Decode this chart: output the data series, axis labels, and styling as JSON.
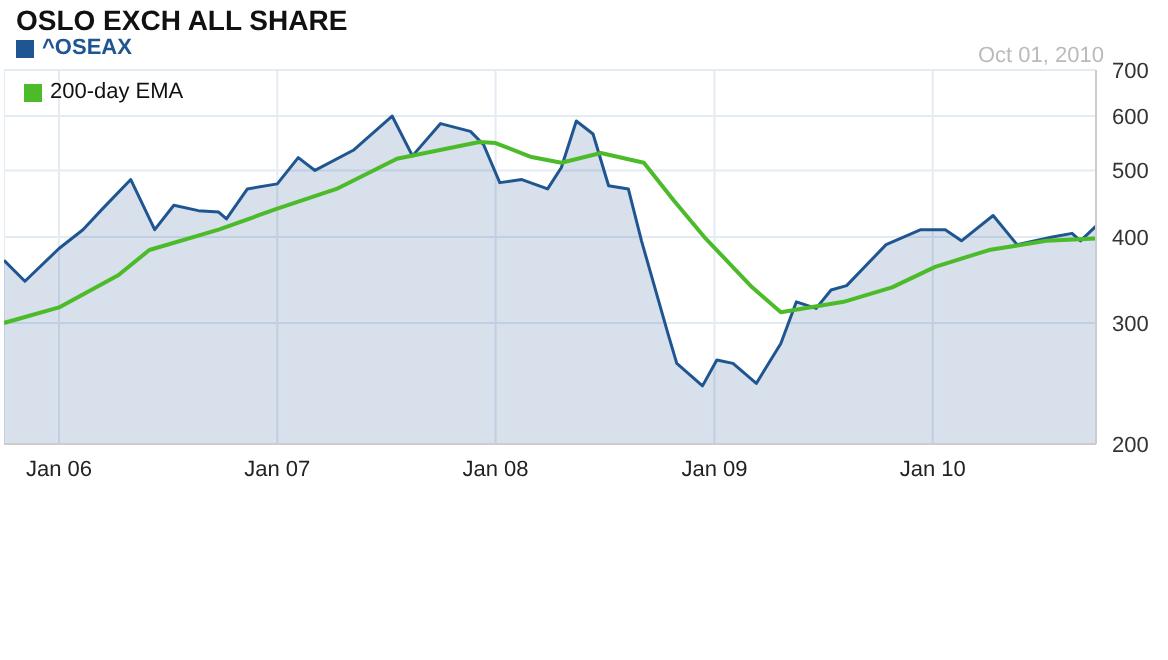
{
  "chart_data": {
    "type": "area",
    "title": "OSLO EXCH ALL SHARE",
    "subtitle": "Oct 01, 2010",
    "series": [
      {
        "name": "^OSEAX",
        "color": "#1f5591",
        "x": [
          "2005-10-01",
          "2005-11-05",
          "2006-01-01",
          "2006-02-10",
          "2006-03-15",
          "2006-05-01",
          "2006-06-10",
          "2006-07-12",
          "2006-08-22",
          "2006-09-25",
          "2006-10-08",
          "2006-11-12",
          "2007-01-01",
          "2007-02-05",
          "2007-03-05",
          "2007-05-08",
          "2007-07-12",
          "2007-08-15",
          "2007-10-01",
          "2007-11-20",
          "2007-12-12",
          "2008-01-08",
          "2008-02-14",
          "2008-03-28",
          "2008-04-20",
          "2008-05-15",
          "2008-06-12",
          "2008-07-08",
          "2008-08-10",
          "2008-09-01",
          "2008-10-15",
          "2008-10-30",
          "2008-12-12",
          "2009-01-05",
          "2009-02-01",
          "2009-03-12",
          "2009-04-22",
          "2009-05-18",
          "2009-06-20",
          "2009-07-15",
          "2009-08-10",
          "2009-10-15",
          "2009-12-12",
          "2010-01-22",
          "2010-02-18",
          "2010-04-12",
          "2010-05-22",
          "2010-07-20",
          "2010-08-22",
          "2010-09-05",
          "2010-10-01"
        ],
        "values": [
          370,
          345,
          385,
          410,
          440,
          485,
          410,
          445,
          437,
          435,
          425,
          470,
          478,
          522,
          500,
          535,
          600,
          525,
          585,
          570,
          545,
          480,
          485,
          470,
          505,
          590,
          565,
          475,
          470,
          395,
          290,
          262,
          243,
          265,
          262,
          245,
          280,
          322,
          315,
          335,
          340,
          390,
          410,
          410,
          395,
          430,
          390,
          400,
          405,
          395,
          415
        ]
      },
      {
        "name": "200-day EMA",
        "type": "line",
        "color": "#4cbb2a",
        "x": [
          "2005-10-01",
          "2006-01-01",
          "2006-04-10",
          "2006-06-01",
          "2006-09-25",
          "2007-01-01",
          "2007-04-10",
          "2007-07-20",
          "2007-12-05",
          "2008-01-01",
          "2008-03-01",
          "2008-04-20",
          "2008-06-25",
          "2008-09-05",
          "2008-10-25",
          "2008-12-15",
          "2009-03-05",
          "2009-04-22",
          "2009-08-05",
          "2009-10-25",
          "2010-01-05",
          "2010-04-05",
          "2010-07-10",
          "2010-10-01"
        ],
        "values": [
          300,
          316,
          352,
          383,
          410,
          440,
          470,
          520,
          550,
          548,
          523,
          513,
          530,
          513,
          452,
          400,
          338,
          311,
          322,
          338,
          362,
          383,
          395,
          398
        ]
      }
    ],
    "xlim": [
      "2005-10-01",
      "2010-10-01"
    ],
    "xticks": [
      {
        "value": "2006-01-01",
        "label": "Jan 06"
      },
      {
        "value": "2007-01-01",
        "label": "Jan 07"
      },
      {
        "value": "2008-01-01",
        "label": "Jan 08"
      },
      {
        "value": "2009-01-01",
        "label": "Jan 09"
      },
      {
        "value": "2010-01-01",
        "label": "Jan 10"
      }
    ],
    "ylim": [
      200,
      700
    ],
    "yticks": [
      200,
      300,
      400,
      500,
      600,
      700
    ],
    "log": "y",
    "grid": true,
    "legend": "top left"
  }
}
